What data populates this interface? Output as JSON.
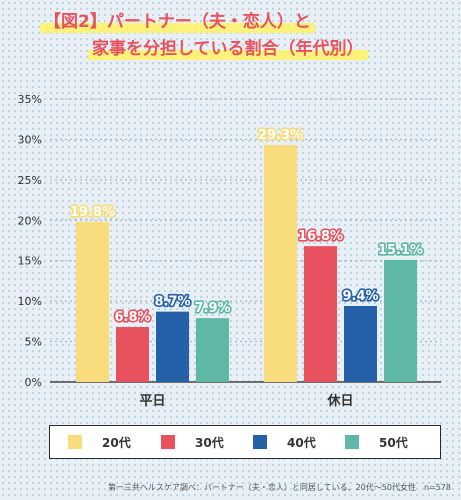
{
  "title": {
    "line1": "【図2】パートナー（夫・恋人）と",
    "line2": "家事を分担している割合（年代別）"
  },
  "footer": "第一三共ヘルスケア調べ：パートナー（夫・恋人）と同居している、20代〜50代女性　n=578",
  "colors": {
    "title": "#e8525f",
    "highlight": "#fff27a",
    "20代": "#f9dc7b",
    "30代": "#e8525f",
    "40代": "#2461a8",
    "50代": "#5fb8a7"
  },
  "chart_data": {
    "type": "bar",
    "categories": [
      "平日",
      "休日"
    ],
    "series": [
      {
        "name": "20代",
        "values": [
          19.8,
          29.3
        ]
      },
      {
        "name": "30代",
        "values": [
          6.8,
          16.8
        ]
      },
      {
        "name": "40代",
        "values": [
          8.7,
          9.4
        ]
      },
      {
        "name": "50代",
        "values": [
          7.9,
          15.1
        ]
      }
    ],
    "data_labels": [
      [
        "19.8%",
        "29.3%"
      ],
      [
        "6.8%",
        "16.8%"
      ],
      [
        "8.7%",
        "9.4%"
      ],
      [
        "7.9%",
        "15.1%"
      ]
    ],
    "yticks": [
      "0%",
      "5%",
      "10%",
      "15%",
      "20%",
      "25%",
      "30%",
      "35%"
    ],
    "ylim": [
      0,
      35
    ],
    "grid": true,
    "legend_position": "bottom"
  }
}
